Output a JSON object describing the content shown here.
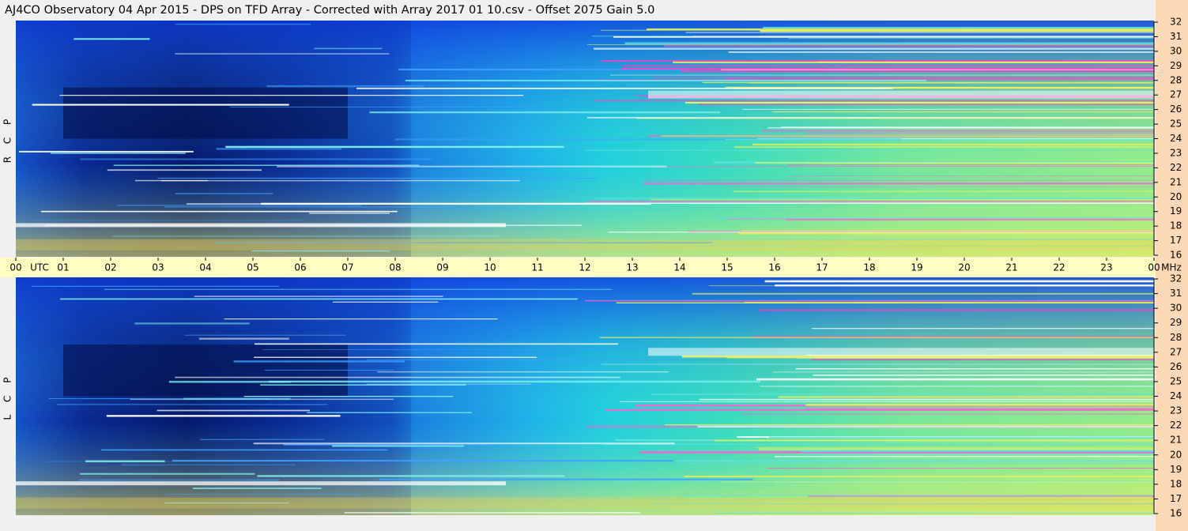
{
  "chart_data": {
    "type": "spectrogram",
    "title": "AJ4CO Observatory  04 Apr 2015  -  DPS on TFD Array  -  Corrected with Array 2017 01 10.csv  -  Offset 2075  Gain 5.0",
    "x_label": "UTC",
    "y_label": "MHz",
    "xlim": [
      0,
      24
    ],
    "xticks": [
      {
        "value": 0,
        "label": "00"
      },
      {
        "value": 1,
        "label": "01"
      },
      {
        "value": 2,
        "label": "02"
      },
      {
        "value": 3,
        "label": "03"
      },
      {
        "value": 4,
        "label": "04"
      },
      {
        "value": 5,
        "label": "05"
      },
      {
        "value": 6,
        "label": "06"
      },
      {
        "value": 7,
        "label": "07"
      },
      {
        "value": 8,
        "label": "08"
      },
      {
        "value": 9,
        "label": "09"
      },
      10,
      11,
      12,
      13,
      14,
      15,
      16,
      17,
      18,
      19,
      20,
      21,
      22,
      23,
      {
        "value": 24,
        "label": "00"
      }
    ],
    "panels": [
      {
        "label": "R C P",
        "ylim": [
          16,
          32
        ],
        "yticks": [
          16,
          17,
          18,
          19,
          20,
          21,
          22,
          23,
          24,
          25,
          26,
          27,
          28,
          29,
          30,
          31,
          32
        ]
      },
      {
        "label": "L C P",
        "ylim": [
          16,
          32
        ],
        "yticks": [
          16,
          17,
          18,
          19,
          20,
          21,
          22,
          23,
          24,
          25,
          26,
          27,
          28,
          29,
          30,
          31,
          32
        ]
      }
    ]
  }
}
